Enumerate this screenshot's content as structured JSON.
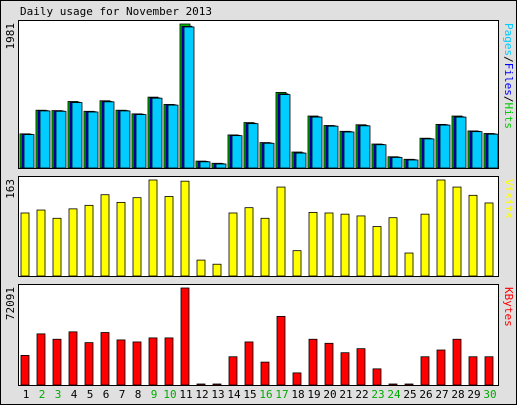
{
  "title": "Daily usage for November 2013",
  "colors": {
    "page_bg": "#e0e0e0",
    "plot_bg": "#ffffff",
    "frame": "#000000",
    "hits": "#00cc00",
    "files": "#0000ff",
    "pages": "#00ccff",
    "visits": "#ffff00",
    "kbytes": "#ff0000",
    "weekend_label": "#00aa00",
    "weekday_label": "#000000",
    "bar_outline": "#000000"
  },
  "chart_data": [
    {
      "type": "bar",
      "panel": "hits-files-pages",
      "right_label": [
        {
          "text": "Pages",
          "color": "#00ccff"
        },
        {
          "text": "/",
          "color": "#000000"
        },
        {
          "text": "Files",
          "color": "#0000ff"
        },
        {
          "text": "/",
          "color": "#000000"
        },
        {
          "text": "Hits",
          "color": "#00cc00"
        }
      ],
      "ymax_label": "1981",
      "ylim": [
        0,
        1981
      ],
      "categories": [
        "1",
        "2",
        "3",
        "4",
        "5",
        "6",
        "7",
        "8",
        "9",
        "10",
        "11",
        "12",
        "13",
        "14",
        "15",
        "16",
        "17",
        "18",
        "19",
        "20",
        "21",
        "22",
        "23",
        "24",
        "25",
        "26",
        "27",
        "28",
        "29",
        "30"
      ],
      "series": [
        {
          "name": "Hits",
          "values": [
            470,
            795,
            790,
            915,
            780,
            925,
            795,
            745,
            975,
            875,
            1981,
            95,
            65,
            455,
            625,
            350,
            1040,
            220,
            715,
            585,
            505,
            595,
            330,
            155,
            120,
            410,
            600,
            715,
            510,
            475
          ]
        },
        {
          "name": "Files",
          "values": [
            465,
            790,
            785,
            905,
            775,
            915,
            790,
            740,
            965,
            870,
            1950,
            90,
            60,
            450,
            615,
            345,
            1020,
            210,
            705,
            580,
            500,
            585,
            325,
            150,
            115,
            405,
            595,
            705,
            505,
            470
          ]
        },
        {
          "name": "Pages",
          "values": [
            460,
            785,
            780,
            900,
            770,
            910,
            785,
            735,
            960,
            865,
            1940,
            85,
            55,
            445,
            610,
            340,
            1010,
            205,
            700,
            575,
            495,
            580,
            320,
            145,
            110,
            400,
            590,
            700,
            500,
            465
          ]
        }
      ]
    },
    {
      "type": "bar",
      "panel": "visits",
      "right_label": [
        {
          "text": "Visits",
          "color": "#ffff00"
        }
      ],
      "ymax_label": "163",
      "ylim": [
        0,
        163
      ],
      "categories": [
        "1",
        "2",
        "3",
        "4",
        "5",
        "6",
        "7",
        "8",
        "9",
        "10",
        "11",
        "12",
        "13",
        "14",
        "15",
        "16",
        "17",
        "18",
        "19",
        "20",
        "21",
        "22",
        "23",
        "24",
        "25",
        "26",
        "27",
        "28",
        "29",
        "30"
      ],
      "series": [
        {
          "name": "Visits",
          "values": [
            107,
            112,
            98,
            114,
            120,
            138,
            125,
            133,
            163,
            135,
            161,
            27,
            20,
            107,
            116,
            98,
            151,
            43,
            108,
            107,
            105,
            102,
            84,
            99,
            39,
            105,
            163,
            151,
            137,
            124
          ]
        }
      ]
    },
    {
      "type": "bar",
      "panel": "kbytes",
      "right_label": [
        {
          "text": "KBytes",
          "color": "#ff0000"
        }
      ],
      "ymax_label": "72091",
      "ylim": [
        0,
        72091
      ],
      "categories": [
        "1",
        "2",
        "3",
        "4",
        "5",
        "6",
        "7",
        "8",
        "9",
        "10",
        "11",
        "12",
        "13",
        "14",
        "15",
        "16",
        "17",
        "18",
        "19",
        "20",
        "21",
        "22",
        "23",
        "24",
        "25",
        "26",
        "27",
        "28",
        "29",
        "30"
      ],
      "series": [
        {
          "name": "KBytes",
          "values": [
            22000,
            38000,
            34000,
            39500,
            31500,
            39000,
            33500,
            32000,
            35000,
            35000,
            72091,
            500,
            500,
            21000,
            32000,
            17000,
            51000,
            9000,
            34000,
            31000,
            24000,
            27000,
            12000,
            600,
            500,
            21000,
            26000,
            34000,
            21000,
            21000
          ]
        }
      ]
    }
  ],
  "x_labels": [
    {
      "text": "1",
      "weekend": false
    },
    {
      "text": "2",
      "weekend": true
    },
    {
      "text": "3",
      "weekend": true
    },
    {
      "text": "4",
      "weekend": false
    },
    {
      "text": "5",
      "weekend": false
    },
    {
      "text": "6",
      "weekend": false
    },
    {
      "text": "7",
      "weekend": false
    },
    {
      "text": "8",
      "weekend": false
    },
    {
      "text": "9",
      "weekend": true
    },
    {
      "text": "10",
      "weekend": true
    },
    {
      "text": "11",
      "weekend": false
    },
    {
      "text": "12",
      "weekend": false
    },
    {
      "text": "13",
      "weekend": false
    },
    {
      "text": "14",
      "weekend": false
    },
    {
      "text": "15",
      "weekend": false
    },
    {
      "text": "16",
      "weekend": true
    },
    {
      "text": "17",
      "weekend": true
    },
    {
      "text": "18",
      "weekend": false
    },
    {
      "text": "19",
      "weekend": false
    },
    {
      "text": "20",
      "weekend": false
    },
    {
      "text": "21",
      "weekend": false
    },
    {
      "text": "22",
      "weekend": false
    },
    {
      "text": "23",
      "weekend": true
    },
    {
      "text": "24",
      "weekend": true
    },
    {
      "text": "25",
      "weekend": false
    },
    {
      "text": "26",
      "weekend": false
    },
    {
      "text": "27",
      "weekend": false
    },
    {
      "text": "28",
      "weekend": false
    },
    {
      "text": "29",
      "weekend": false
    },
    {
      "text": "30",
      "weekend": true
    }
  ]
}
